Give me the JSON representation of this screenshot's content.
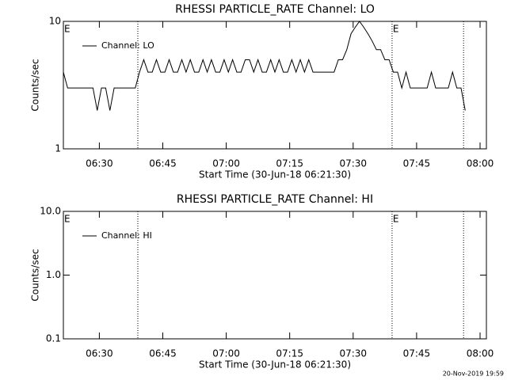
{
  "chart_data": [
    {
      "type": "line",
      "title": "RHESSI PARTICLE_RATE Channel: LO",
      "xlabel": "Start Time (30-Jun-18 06:21:30)",
      "ylabel": "Counts/sec",
      "xlim": [
        0,
        100
      ],
      "xticks": [
        {
          "value": 8.5,
          "label": "06:30"
        },
        {
          "value": 23.5,
          "label": "06:45"
        },
        {
          "value": 38.5,
          "label": "07:00"
        },
        {
          "value": 53.5,
          "label": "07:15"
        },
        {
          "value": 68.5,
          "label": "07:30"
        },
        {
          "value": 83.5,
          "label": "07:45"
        },
        {
          "value": 98.5,
          "label": "08:00"
        }
      ],
      "ylim": [
        1,
        10
      ],
      "yticks": [
        1,
        10
      ],
      "log_y": true,
      "vlines": [
        17.6,
        77.7,
        94.6
      ],
      "annotations": [
        {
          "text": "E",
          "x": 0
        },
        {
          "text": "E",
          "x": 77.7
        }
      ],
      "legend": "upper left",
      "x": [
        0,
        1,
        2,
        3,
        4,
        5,
        6,
        7,
        8,
        9,
        10,
        11,
        12,
        13,
        14,
        15,
        16,
        17,
        18,
        19,
        20,
        21,
        22,
        23,
        24,
        25,
        26,
        27,
        28,
        29,
        30,
        31,
        32,
        33,
        34,
        35,
        36,
        37,
        38,
        39,
        40,
        41,
        42,
        43,
        44,
        45,
        46,
        47,
        48,
        49,
        50,
        51,
        52,
        53,
        54,
        55,
        56,
        57,
        58,
        59,
        60,
        61,
        62,
        63,
        64,
        65,
        66,
        67,
        68,
        69,
        70,
        71,
        72,
        73,
        74,
        75,
        76,
        77,
        78,
        79,
        80,
        81,
        82,
        83,
        84,
        85,
        86,
        87,
        88,
        89,
        90,
        91,
        92,
        93,
        94,
        95
      ],
      "series": [
        {
          "name": "Channel: LO",
          "color": "#000000",
          "values": [
            4,
            3,
            3,
            3,
            3,
            3,
            3,
            3,
            2,
            3,
            3,
            2,
            3,
            3,
            3,
            3,
            3,
            3,
            4,
            5,
            4,
            4,
            5,
            4,
            4,
            5,
            4,
            4,
            5,
            4,
            5,
            4,
            4,
            5,
            4,
            5,
            4,
            4,
            5,
            4,
            5,
            4,
            4,
            5,
            5,
            4,
            5,
            4,
            4,
            5,
            4,
            5,
            4,
            4,
            5,
            4,
            5,
            4,
            5,
            4,
            4,
            4,
            4,
            4,
            4,
            5,
            5,
            6,
            8,
            9,
            10,
            9,
            8,
            7,
            6,
            6,
            5,
            5,
            4,
            4,
            3,
            4,
            3,
            3,
            3,
            3,
            3,
            4,
            3,
            3,
            3,
            3,
            4,
            3,
            3,
            2
          ]
        }
      ]
    },
    {
      "type": "line",
      "title": "RHESSI PARTICLE_RATE Channel: HI",
      "xlabel": "Start Time (30-Jun-18 06:21:30)",
      "ylabel": "Counts/sec",
      "xlim": [
        0,
        100
      ],
      "xticks": [
        {
          "value": 8.5,
          "label": "06:30"
        },
        {
          "value": 23.5,
          "label": "06:45"
        },
        {
          "value": 38.5,
          "label": "07:00"
        },
        {
          "value": 53.5,
          "label": "07:15"
        },
        {
          "value": 68.5,
          "label": "07:30"
        },
        {
          "value": 83.5,
          "label": "07:45"
        },
        {
          "value": 98.5,
          "label": "08:00"
        }
      ],
      "ylim": [
        0.1,
        10
      ],
      "yticks": [
        0.1,
        {
          "value": 1,
          "label": "1.0"
        },
        {
          "value": 10,
          "label": "10.0"
        }
      ],
      "log_y": true,
      "vlines": [
        17.6,
        77.7,
        94.6
      ],
      "annotations": [
        {
          "text": "E",
          "x": 0
        },
        {
          "text": "E",
          "x": 77.7
        }
      ],
      "legend": "upper left",
      "x": [],
      "series": [
        {
          "name": "Channel: HI",
          "color": "#000000",
          "values": []
        }
      ]
    }
  ],
  "footer": "20-Nov-2019 19:59"
}
